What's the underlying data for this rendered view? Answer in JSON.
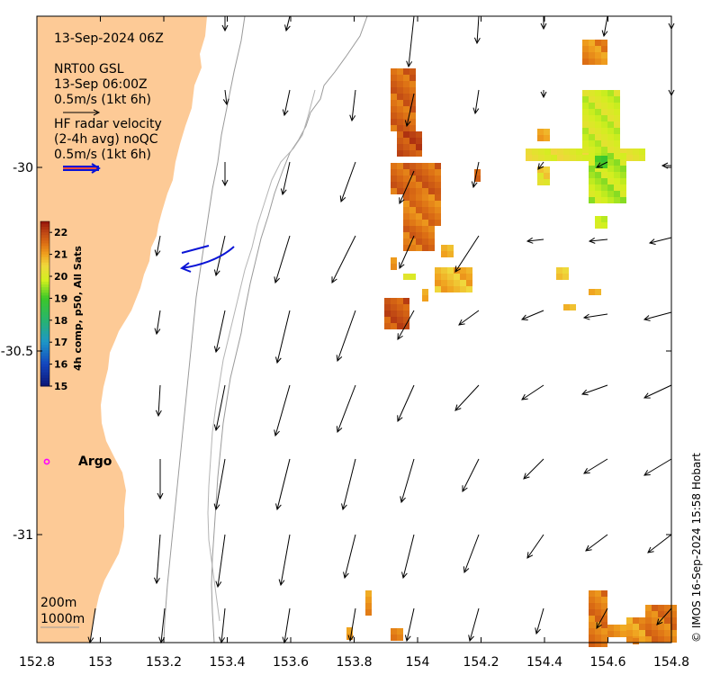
{
  "map": {
    "title": "13-Sep-2024 06Z",
    "model_name": "NRT00 GSL",
    "model_time": "13-Sep 06:00Z",
    "model_scale": "0.5m/s (1kt 6h)",
    "radar_title_line1": "HF radar velocity",
    "radar_title_line2": "(2-4h avg) noQC",
    "radar_scale": "0.5m/s (1kt 6h)",
    "argo_label": "Argo",
    "depth_label_1": "200m",
    "depth_label_2": "1000m",
    "credit": "© IMOS 16-Sep-2024 15:58 Hobart",
    "x_ticks": [
      "152.8",
      "153",
      "153.2",
      "153.4",
      "153.6",
      "153.8",
      "154",
      "154.2",
      "154.4",
      "154.6",
      "154.8"
    ],
    "y_ticks": [
      "-30",
      "-30.5",
      "-31"
    ],
    "colors": {
      "land": "#fdca96",
      "argo": "#ff00ff",
      "radar": "#0a14d6",
      "radar_scale_red": "#e4251e"
    }
  },
  "colorbar": {
    "label": "4h comp, p50, All Sats",
    "ticks": [
      "22",
      "21",
      "20",
      "19",
      "18",
      "17",
      "16",
      "15"
    ],
    "min": 15,
    "max": 22.5
  }
}
